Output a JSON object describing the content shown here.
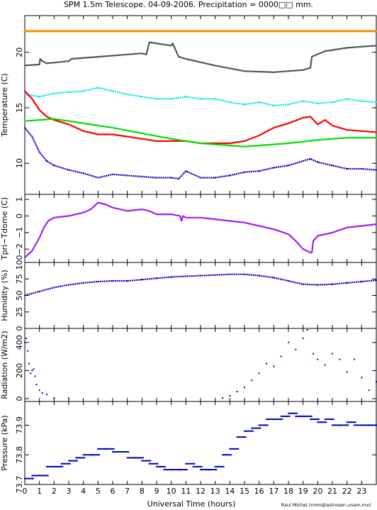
{
  "title": "SPM 1.5m Telescope. 04-09-2006. Precipitation = 0000□□ mm.",
  "credit": "Raul Michel (rmm@astrosen.unam.mx)",
  "chart_data": {
    "x_axis": {
      "label": "Universal Time (hours)",
      "ticks": [
        "0",
        "1",
        "2",
        "3",
        "4",
        "5",
        "6",
        "7",
        "8",
        "9",
        "10",
        "11",
        "12",
        "13",
        "14",
        "15",
        "16",
        "17",
        "18",
        "19",
        "20",
        "21",
        "22",
        "23"
      ],
      "range": [
        0,
        24
      ]
    },
    "panels": [
      {
        "type": "line",
        "ylabel": "Temperature (C)",
        "ylim": [
          7.2,
          23.3
        ],
        "yticks": [
          "10",
          "15",
          "20"
        ],
        "series": [
          {
            "color": "#ff8c00",
            "x": [
              0,
              24
            ],
            "y": [
              21.9,
              21.9
            ]
          },
          {
            "color": "#555555",
            "x": [
              0,
              1,
              1.05,
              1.2,
              1.5,
              3,
              3.2,
              8,
              8.3,
              8.5,
              10,
              10.1,
              10.5,
              11,
              13,
              15,
              17,
              19,
              19.5,
              19.6,
              20.5,
              22,
              24
            ],
            "y": [
              18.8,
              18.9,
              19.4,
              19.2,
              19.0,
              19.2,
              19.4,
              19.9,
              19.8,
              20.9,
              20.6,
              20.8,
              19.6,
              19.4,
              18.8,
              18.3,
              18.2,
              18.4,
              18.6,
              19.6,
              20.1,
              20.4,
              20.6
            ]
          },
          {
            "color": "#00e5e5",
            "x": [
              0,
              1,
              2,
              3,
              4,
              5,
              6,
              7,
              8,
              9,
              10,
              11,
              12,
              13,
              14,
              15,
              16,
              17,
              18,
              19,
              20,
              21,
              22,
              23,
              24
            ],
            "y": [
              16.2,
              16.0,
              16.3,
              16.4,
              16.5,
              16.8,
              16.5,
              16.2,
              16.0,
              15.8,
              15.8,
              16.0,
              15.8,
              15.8,
              15.5,
              15.3,
              15.5,
              15.2,
              15.3,
              15.6,
              15.4,
              15.5,
              15.8,
              15.6,
              15.5
            ]
          },
          {
            "color": "#ff0000",
            "x": [
              0,
              0.5,
              1,
              1.5,
              2,
              3,
              4,
              5,
              6,
              7,
              8,
              9,
              10,
              11,
              12,
              13,
              14,
              15,
              16,
              17,
              18,
              19,
              19.5,
              20,
              20.5,
              21,
              22,
              23,
              24
            ],
            "y": [
              16.5,
              15.8,
              14.8,
              14.2,
              13.9,
              13.5,
              12.9,
              12.6,
              12.6,
              12.4,
              12.2,
              12.0,
              12.0,
              12.0,
              11.8,
              11.8,
              11.8,
              12.0,
              12.5,
              13.2,
              13.6,
              14.1,
              14.2,
              13.5,
              13.9,
              13.4,
              13.0,
              12.9,
              12.8
            ]
          },
          {
            "color": "#00dd00",
            "x": [
              0,
              2,
              4,
              6,
              8,
              10,
              12,
              14,
              15,
              16,
              18,
              20,
              22,
              24
            ],
            "y": [
              13.8,
              14.0,
              13.6,
              13.2,
              12.7,
              12.2,
              11.8,
              11.6,
              11.5,
              11.6,
              11.8,
              12.1,
              12.3,
              12.3
            ]
          },
          {
            "color": "#0000bb",
            "x": [
              0,
              0.5,
              1,
              1.5,
              2,
              3,
              4,
              5,
              6,
              7,
              8,
              9,
              10,
              10.5,
              11,
              12,
              13,
              14,
              15,
              16,
              17,
              18,
              19,
              19.5,
              20,
              21,
              22,
              23,
              24
            ],
            "y": [
              13.2,
              12.4,
              11.0,
              10.2,
              9.8,
              9.4,
              9.1,
              8.7,
              9.0,
              8.9,
              8.8,
              8.7,
              8.7,
              8.6,
              9.3,
              8.7,
              8.7,
              8.9,
              9.2,
              9.3,
              9.6,
              9.8,
              10.2,
              10.4,
              10.1,
              9.8,
              9.5,
              9.5,
              9.4
            ]
          }
        ]
      },
      {
        "type": "line",
        "ylabel": "Tpri−Tdome (C)",
        "ylim": [
          -2.8,
          1.3
        ],
        "yticks": [
          "−2",
          "−1",
          "0",
          "1"
        ],
        "series": [
          {
            "color": "#a020f0",
            "x": [
              0,
              0.5,
              1,
              1.3,
              1.6,
              2,
              3,
              3.5,
              4,
              4.5,
              5,
              5.5,
              6,
              7,
              8,
              8.5,
              9,
              10,
              10.6,
              10.7,
              10.8,
              11,
              12,
              13,
              14,
              15,
              16,
              17,
              18,
              18.5,
              19,
              19.5,
              19.6,
              19.7,
              20,
              21,
              22,
              23,
              24
            ],
            "y": [
              -2.5,
              -2.1,
              -1.3,
              -0.7,
              -0.3,
              -0.1,
              0.0,
              0.1,
              0.2,
              0.4,
              0.8,
              0.7,
              0.5,
              0.3,
              0.4,
              0.3,
              0.1,
              0.1,
              0.0,
              -0.3,
              0.0,
              -0.1,
              -0.1,
              -0.2,
              -0.3,
              -0.4,
              -0.6,
              -0.8,
              -1.1,
              -1.5,
              -2.0,
              -2.2,
              -2.2,
              -1.5,
              -1.2,
              -1.0,
              -0.7,
              -0.6,
              -0.5
            ]
          }
        ]
      },
      {
        "type": "line",
        "ylabel": "Humidity (%)",
        "ylim": [
          0,
          100
        ],
        "yticks": [
          "0",
          "25",
          "50",
          "75",
          "100"
        ],
        "series": [
          {
            "color": "#0000bb",
            "x": [
              0,
              1,
              2,
              3,
              4,
              5,
              6,
              7,
              8,
              9,
              10,
              11,
              12,
              13,
              14,
              15,
              16,
              17,
              18,
              19,
              20,
              21,
              22,
              23,
              24
            ],
            "y": [
              50,
              56,
              62,
              66,
              69,
              71,
              72,
              72,
              74,
              76,
              78,
              79,
              80,
              81,
              82,
              82,
              80,
              77,
              72,
              67,
              66,
              67,
              69,
              71,
              73
            ]
          }
        ]
      },
      {
        "type": "scatter",
        "ylabel": "Radiation (W/m2)",
        "ylim": [
          -20,
          500
        ],
        "yticks": [
          "0",
          "200",
          "400"
        ],
        "series": [
          {
            "color": "#0000bb",
            "x": [
              0,
              0.1,
              0.2,
              0.3,
              0.4,
              0.5,
              0.6,
              0.7,
              0.8,
              1.0,
              1.2,
              1.5,
              2,
              3,
              13.5,
              14,
              14.5,
              15,
              15.5,
              16,
              16.5,
              17,
              17.5,
              18,
              18.5,
              19,
              19.3,
              19.7,
              20,
              20.5,
              21,
              21.5,
              22,
              22.5,
              23,
              23.5,
              24
            ],
            "y": [
              400,
              430,
              340,
              250,
              180,
              200,
              210,
              160,
              100,
              60,
              40,
              30,
              5,
              3,
              5,
              20,
              50,
              80,
              130,
              180,
              250,
              230,
              300,
              400,
              350,
              430,
              490,
              320,
              280,
              240,
              320,
              280,
              190,
              280,
              150,
              60,
              120
            ]
          }
        ]
      },
      {
        "type": "scatter",
        "ylabel": "Pressure (kPa)",
        "ylim": [
          73.7,
          73.98
        ],
        "yticks": [
          "73.7",
          "73.8",
          "73.9"
        ],
        "series": [
          {
            "color": "#0000bb",
            "x": [
              0,
              0.5,
              1,
              1.5,
              2,
              2.5,
              3,
              3.5,
              4,
              4.5,
              5,
              5.5,
              6,
              6.5,
              7,
              7.5,
              8,
              8.5,
              9,
              9.5,
              10,
              10.5,
              11,
              11.5,
              12,
              12.5,
              13,
              13.5,
              14,
              14.5,
              15,
              15.5,
              16,
              16.5,
              17,
              17.5,
              18,
              18.5,
              19,
              19.5,
              20,
              20.5,
              21,
              21.5,
              22,
              22.5,
              23,
              23.5,
              24
            ],
            "y": [
              73.72,
              73.73,
              73.73,
              73.76,
              73.76,
              73.77,
              73.78,
              73.79,
              73.8,
              73.8,
              73.82,
              73.82,
              73.81,
              73.81,
              73.79,
              73.79,
              73.78,
              73.77,
              73.76,
              73.75,
              73.75,
              73.75,
              73.77,
              73.76,
              73.75,
              73.75,
              73.76,
              73.8,
              73.82,
              73.86,
              73.88,
              73.89,
              73.9,
              73.92,
              73.92,
              73.93,
              73.94,
              73.93,
              73.93,
              73.92,
              73.91,
              73.92,
              73.9,
              73.9,
              73.91,
              73.9,
              73.9,
              73.9,
              73.9
            ]
          }
        ]
      }
    ]
  }
}
